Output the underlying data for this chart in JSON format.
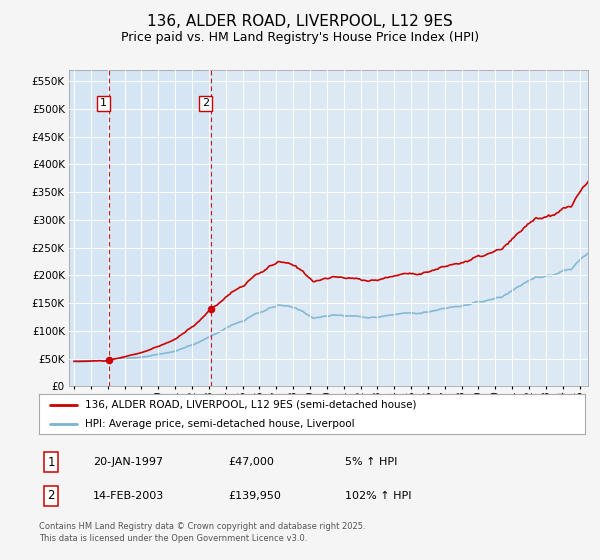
{
  "title": "136, ALDER ROAD, LIVERPOOL, L12 9ES",
  "subtitle": "Price paid vs. HM Land Registry's House Price Index (HPI)",
  "background_color": "#dce9f5",
  "plot_bg_color": "#dce9f5",
  "fig_bg_color": "#f5f5f5",
  "sale1_year": 1997.055,
  "sale1_price": 47000,
  "sale2_year": 2003.12,
  "sale2_price": 139950,
  "legend_line1": "136, ALDER ROAD, LIVERPOOL, L12 9ES (semi-detached house)",
  "legend_line2": "HPI: Average price, semi-detached house, Liverpool",
  "footer_line1": "Contains HM Land Registry data © Crown copyright and database right 2025.",
  "footer_line2": "This data is licensed under the Open Government Licence v3.0.",
  "note1_date": "20-JAN-1997",
  "note1_price": "£47,000",
  "note1_hpi": "5% ↑ HPI",
  "note2_date": "14-FEB-2003",
  "note2_price": "£139,950",
  "note2_hpi": "102% ↑ HPI",
  "hpi_color": "#7ab3d4",
  "property_color": "#cc0000",
  "vline_color": "#cc0000",
  "grid_color": "#ffffff",
  "shade_color": "#dce8f5",
  "ylim_max": 570000,
  "xlim_min": 1994.7,
  "xlim_max": 2025.5
}
